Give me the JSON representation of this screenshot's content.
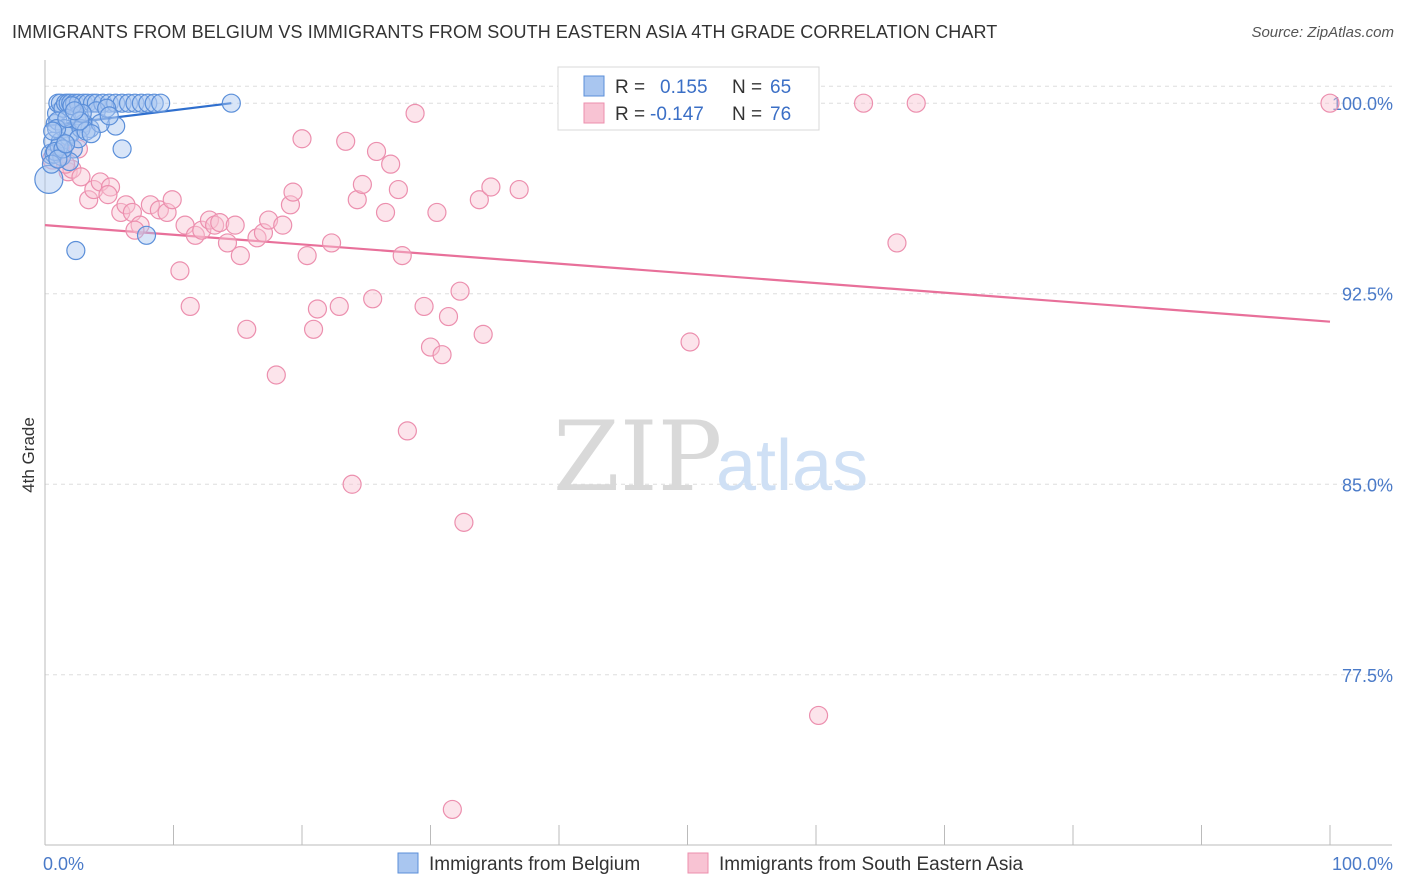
{
  "chart_data": {
    "type": "scatter",
    "title": "IMMIGRANTS FROM BELGIUM VS IMMIGRANTS FROM SOUTH EASTERN ASIA 4TH GRADE CORRELATION CHART",
    "source": "Source: ZipAtlas.com",
    "ylabel": "4th Grade",
    "xlabel": "",
    "xlim": [
      0,
      100
    ],
    "ylim": [
      70.8,
      101.7
    ],
    "x_tick_labels": [
      "0.0%",
      "100.0%"
    ],
    "y_ticks": [
      {
        "value": 100.0,
        "label": "100.0%"
      },
      {
        "value": 92.5,
        "label": "92.5%"
      },
      {
        "value": 85.0,
        "label": "85.0%"
      },
      {
        "value": 77.5,
        "label": "77.5%"
      }
    ],
    "grid": true,
    "watermark": {
      "zip": "ZIP",
      "atlas": "atlas"
    },
    "colors": {
      "blue_fill": "#a9c6f0",
      "blue_stroke": "#5b8fd9",
      "blue_line": "#2f6fce",
      "pink_fill": "#f8c3d3",
      "pink_stroke": "#ec8fae",
      "pink_line": "#e8709a",
      "axis_text": "#4a7ac8",
      "grid": "#dddddd"
    },
    "legend": {
      "entries": [
        {
          "r_label": "R =",
          "r_value": "0.155",
          "n_label": "N =",
          "n_value": "65",
          "color": "blue"
        },
        {
          "r_label": "R =",
          "r_value": "-0.147",
          "n_label": "N =",
          "n_value": "76",
          "color": "pink"
        }
      ]
    },
    "series": [
      {
        "name": "Immigrants from Belgium",
        "color": "blue",
        "trend": {
          "x0": 0.0,
          "y0": 99.1,
          "x1": 14.5,
          "y1": 100.0
        },
        "points": [
          [
            0.3,
            97.0,
            14
          ],
          [
            0.5,
            98.0,
            10
          ],
          [
            0.6,
            98.5,
            9
          ],
          [
            0.8,
            99.2,
            9
          ],
          [
            0.9,
            99.6,
            9
          ],
          [
            1.0,
            100.0,
            9
          ],
          [
            1.2,
            100.0,
            9
          ],
          [
            1.4,
            99.8,
            9
          ],
          [
            1.6,
            100.0,
            9
          ],
          [
            1.8,
            100.0,
            9
          ],
          [
            2.0,
            100.0,
            9
          ],
          [
            2.3,
            100.0,
            9
          ],
          [
            2.6,
            100.0,
            9
          ],
          [
            3.0,
            100.0,
            9
          ],
          [
            3.3,
            100.0,
            9
          ],
          [
            3.7,
            100.0,
            9
          ],
          [
            4.0,
            100.0,
            9
          ],
          [
            4.5,
            100.0,
            9
          ],
          [
            5.0,
            100.0,
            9
          ],
          [
            5.5,
            100.0,
            9
          ],
          [
            6.0,
            100.0,
            9
          ],
          [
            6.5,
            100.0,
            9
          ],
          [
            7.0,
            100.0,
            9
          ],
          [
            7.5,
            100.0,
            9
          ],
          [
            8.0,
            100.0,
            9
          ],
          [
            8.5,
            100.0,
            9
          ],
          [
            9.0,
            100.0,
            9
          ],
          [
            14.5,
            100.0,
            9
          ],
          [
            1.0,
            99.3,
            9
          ],
          [
            1.5,
            99.0,
            9
          ],
          [
            2.0,
            98.8,
            9
          ],
          [
            2.5,
            99.5,
            9
          ],
          [
            3.0,
            99.2,
            9
          ],
          [
            3.5,
            99.0,
            9
          ],
          [
            1.2,
            98.5,
            9
          ],
          [
            1.8,
            98.7,
            9
          ],
          [
            2.2,
            98.2,
            9
          ],
          [
            2.8,
            99.0,
            9
          ],
          [
            0.7,
            98.0,
            9
          ],
          [
            1.3,
            97.9,
            9
          ],
          [
            4.0,
            99.7,
            9
          ],
          [
            5.5,
            99.1,
            9
          ],
          [
            6.0,
            98.2,
            9
          ],
          [
            2.4,
            94.2,
            9
          ],
          [
            7.9,
            94.8,
            9
          ],
          [
            0.9,
            99.0,
            9
          ],
          [
            1.1,
            98.3,
            9
          ],
          [
            1.7,
            99.4,
            9
          ],
          [
            2.6,
            98.6,
            9
          ],
          [
            3.2,
            98.9,
            9
          ],
          [
            0.6,
            98.9,
            9
          ],
          [
            0.8,
            98.1,
            9
          ],
          [
            1.9,
            97.7,
            9
          ],
          [
            2.1,
            99.9,
            9
          ],
          [
            2.9,
            99.6,
            9
          ],
          [
            4.3,
            99.2,
            9
          ],
          [
            4.8,
            99.8,
            9
          ],
          [
            1.4,
            98.2,
            9
          ],
          [
            0.5,
            97.6,
            9
          ],
          [
            3.6,
            98.8,
            9
          ],
          [
            1.0,
            97.8,
            9
          ],
          [
            2.7,
            99.3,
            9
          ],
          [
            1.6,
            98.4,
            9
          ],
          [
            2.3,
            99.7,
            9
          ],
          [
            5.0,
            99.5,
            9
          ]
        ]
      },
      {
        "name": "Immigrants from South Eastern Asia",
        "color": "pink",
        "trend": {
          "x0": 0.0,
          "y0": 95.2,
          "x1": 100.0,
          "y1": 91.4
        },
        "points": [
          [
            0.6,
            97.8,
            10
          ],
          [
            1.3,
            98.0,
            9
          ],
          [
            1.8,
            97.3,
            9
          ],
          [
            2.1,
            97.4,
            9
          ],
          [
            2.8,
            97.1,
            9
          ],
          [
            3.4,
            96.2,
            9
          ],
          [
            3.8,
            96.6,
            9
          ],
          [
            4.3,
            96.9,
            9
          ],
          [
            5.1,
            96.7,
            9
          ],
          [
            5.9,
            95.7,
            9
          ],
          [
            6.3,
            96.0,
            9
          ],
          [
            6.8,
            95.7,
            9
          ],
          [
            7.4,
            95.2,
            9
          ],
          [
            8.2,
            96.0,
            9
          ],
          [
            8.9,
            95.8,
            9
          ],
          [
            9.5,
            95.7,
            9
          ],
          [
            9.9,
            96.2,
            9
          ],
          [
            10.5,
            93.4,
            9
          ],
          [
            10.9,
            95.2,
            9
          ],
          [
            11.3,
            92.0,
            9
          ],
          [
            11.7,
            94.8,
            9
          ],
          [
            12.2,
            95.0,
            9
          ],
          [
            12.8,
            95.4,
            9
          ],
          [
            13.2,
            95.2,
            9
          ],
          [
            13.6,
            95.3,
            9
          ],
          [
            14.2,
            94.5,
            9
          ],
          [
            14.8,
            95.2,
            9
          ],
          [
            15.2,
            94.0,
            9
          ],
          [
            15.7,
            91.1,
            9
          ],
          [
            16.5,
            94.7,
            9
          ],
          [
            17.0,
            94.9,
            9
          ],
          [
            17.4,
            95.4,
            9
          ],
          [
            18.0,
            89.3,
            9
          ],
          [
            18.5,
            95.2,
            9
          ],
          [
            19.1,
            96.0,
            9
          ],
          [
            19.3,
            96.5,
            9
          ],
          [
            20.0,
            98.6,
            9
          ],
          [
            20.4,
            94.0,
            9
          ],
          [
            20.9,
            91.1,
            9
          ],
          [
            21.2,
            91.9,
            9
          ],
          [
            22.3,
            94.5,
            9
          ],
          [
            22.9,
            92.0,
            9
          ],
          [
            23.4,
            98.5,
            9
          ],
          [
            23.9,
            85.0,
            9
          ],
          [
            24.3,
            96.2,
            9
          ],
          [
            24.7,
            96.8,
            9
          ],
          [
            25.5,
            92.3,
            9
          ],
          [
            25.8,
            98.1,
            9
          ],
          [
            26.5,
            95.7,
            9
          ],
          [
            26.9,
            97.6,
            9
          ],
          [
            27.5,
            96.6,
            9
          ],
          [
            27.8,
            94.0,
            9
          ],
          [
            28.2,
            87.1,
            9
          ],
          [
            28.8,
            99.6,
            9
          ],
          [
            29.5,
            92.0,
            9
          ],
          [
            30.0,
            90.4,
            9
          ],
          [
            30.5,
            95.7,
            9
          ],
          [
            30.9,
            90.1,
            9
          ],
          [
            31.4,
            91.6,
            9
          ],
          [
            32.3,
            92.6,
            9
          ],
          [
            32.6,
            83.5,
            9
          ],
          [
            33.8,
            96.2,
            9
          ],
          [
            34.1,
            90.9,
            9
          ],
          [
            34.7,
            96.7,
            9
          ],
          [
            36.9,
            96.6,
            9
          ],
          [
            31.7,
            72.2,
            9
          ],
          [
            50.2,
            90.6,
            9
          ],
          [
            60.2,
            75.9,
            9
          ],
          [
            63.7,
            100.0,
            9
          ],
          [
            67.8,
            100.0,
            9
          ],
          [
            66.3,
            94.5,
            9
          ],
          [
            100.0,
            100.0,
            9
          ],
          [
            2.6,
            98.2,
            9
          ],
          [
            4.9,
            96.4,
            9
          ],
          [
            7.0,
            95.0,
            9
          ],
          [
            1.6,
            97.6,
            9
          ]
        ]
      }
    ]
  },
  "bottom_legend": {
    "items": [
      {
        "label": "Immigrants from Belgium",
        "color": "blue"
      },
      {
        "label": "Immigrants from South Eastern Asia",
        "color": "pink"
      }
    ]
  }
}
